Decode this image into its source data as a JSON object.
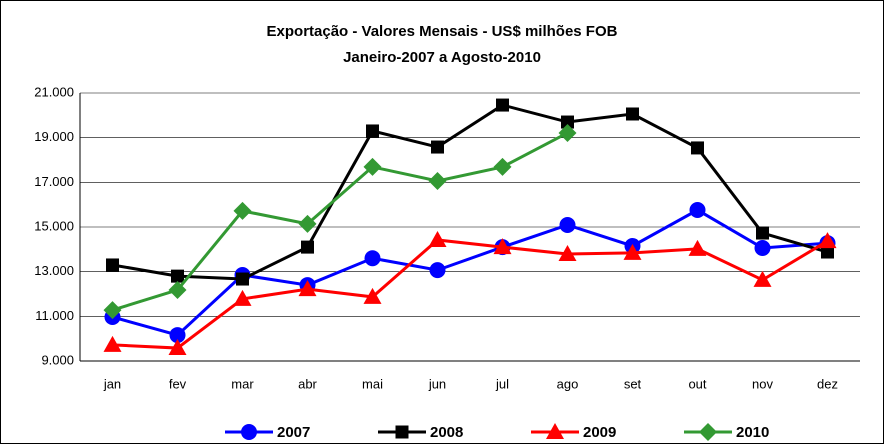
{
  "chart_data": {
    "type": "line",
    "title": "Exportação - Valores Mensais -  US$ milhões FOB",
    "subtitle": "Janeiro-2007 a Agosto-2010",
    "categories": [
      "jan",
      "fev",
      "mar",
      "abr",
      "mai",
      "jun",
      "jul",
      "ago",
      "set",
      "out",
      "nov",
      "dez"
    ],
    "series": [
      {
        "name": "2007",
        "color": "#0000ff",
        "marker": "circle",
        "values": [
          10970,
          10160,
          12850,
          12400,
          13600,
          13070,
          14100,
          15090,
          14150,
          15760,
          14060,
          14280
        ]
      },
      {
        "name": "2008",
        "color": "#000000",
        "marker": "square",
        "values": [
          13300,
          12800,
          12670,
          14100,
          19300,
          18580,
          20460,
          19700,
          20060,
          18540,
          14730,
          13880
        ]
      },
      {
        "name": "2009",
        "color": "#ff0000",
        "marker": "triangle",
        "values": [
          9720,
          9580,
          11780,
          12220,
          11870,
          14420,
          14100,
          13790,
          13840,
          14020,
          12630,
          14370
        ]
      },
      {
        "name": "2010",
        "color": "#339933",
        "marker": "diamond",
        "values": [
          11280,
          12180,
          15720,
          15140,
          17690,
          17060,
          17690,
          19210,
          null,
          null,
          null,
          null
        ]
      }
    ],
    "ylim": [
      9000,
      21000
    ],
    "yticks": [
      {
        "value": 9000,
        "label": "9.000"
      },
      {
        "value": 11000,
        "label": "11.000"
      },
      {
        "value": 13000,
        "label": "13.000"
      },
      {
        "value": 15000,
        "label": "15.000"
      },
      {
        "value": 17000,
        "label": "17.000"
      },
      {
        "value": 19000,
        "label": "19.000"
      },
      {
        "value": 21000,
        "label": "21.000"
      }
    ],
    "grid": true,
    "legend": "bottom"
  }
}
